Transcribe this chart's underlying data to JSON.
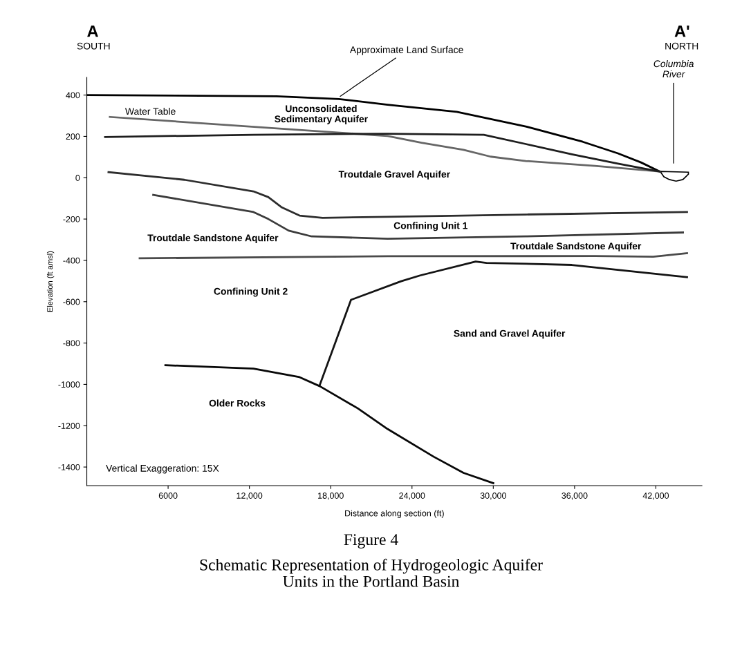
{
  "chart_data": {
    "type": "line",
    "title": "Figure 4",
    "subtitle": "Schematic Representation of Hydrogeologic Aquifer\nUnits in the Portland Basin",
    "xlabel": "Distance along section (ft)",
    "ylabel": "Elevation (ft amsl)",
    "xlim": [
      0,
      45400
    ],
    "ylim": [
      -1490,
      485
    ],
    "xticks": [
      6000,
      {
        "value": 12000,
        "label": "12,000"
      },
      {
        "value": 18000,
        "label": "18,000"
      },
      {
        "value": 24000,
        "label": "24,000"
      },
      {
        "value": 30000,
        "label": "30,000"
      },
      {
        "value": 36000,
        "label": "36,000"
      },
      {
        "value": 42000,
        "label": "42,000"
      }
    ],
    "yticks": [
      400,
      200,
      0,
      -200,
      -400,
      -600,
      -800,
      -1000,
      -1200,
      -1400
    ],
    "grid": false,
    "marker": "none",
    "line_style": "solid",
    "series": [
      {
        "color": "#000000",
        "x": [
          0,
          14000,
          18600,
          22200,
          27300,
          32400,
          36600,
          39200,
          40900,
          42300
        ],
        "values": [
          400,
          394,
          381,
          353,
          319,
          248,
          174,
          118,
          74,
          30
        ]
      },
      {
        "color": "#666666",
        "x": [
          1700,
          22200,
          24700,
          27800,
          29800,
          32400,
          37500,
          42300
        ],
        "values": [
          294,
          202,
          169,
          135,
          102,
          81,
          57,
          30
        ]
      },
      {
        "color": "#1e1e1e",
        "x": [
          1350,
          12300,
          22200,
          29300,
          32400,
          35800,
          39200,
          42300
        ],
        "values": [
          197,
          208,
          213,
          208,
          163,
          113,
          68,
          30
        ]
      },
      {
        "color": "#2d2d2d",
        "x": [
          1600,
          7200,
          12300,
          13400,
          14400,
          15700,
          17400,
          22200,
          32400,
          44300
        ],
        "values": [
          27,
          -10,
          -66,
          -94,
          -144,
          -183,
          -194,
          -189,
          -178,
          -166
        ]
      },
      {
        "color": "#3c3c3c",
        "x": [
          4900,
          12300,
          13400,
          14900,
          16600,
          22200,
          32400,
          44000
        ],
        "values": [
          -83,
          -166,
          -200,
          -256,
          -284,
          -295,
          -284,
          -265
        ]
      },
      {
        "color": "#4b4b4b",
        "x": [
          3900,
          22200,
          37500,
          41800,
          44300
        ],
        "values": [
          -390,
          -380,
          -379,
          -382,
          -365
        ]
      },
      {
        "color": "#141414",
        "x": [
          17200,
          19500,
          23200,
          24600,
          28700,
          29500,
          35800,
          44300
        ],
        "values": [
          -1002,
          -591,
          -501,
          -473,
          -406,
          -412,
          -422,
          -481
        ]
      },
      {
        "color": "#080808",
        "x": [
          5800,
          12300,
          15700,
          17200,
          20000,
          22200,
          25600,
          27800,
          30000
        ],
        "values": [
          -907,
          -924,
          -965,
          -1009,
          -1116,
          -1216,
          -1350,
          -1428,
          -1478
        ]
      }
    ],
    "annotations": [
      "A",
      "SOUTH",
      "A'",
      "NORTH",
      {
        "text": "Approximate Land Surface",
        "x": 18700,
        "y": 394
      },
      "Columbia\nRiver",
      "Water Table",
      "Unconsolidated\nSedimentary Aquifer",
      "Troutdale Gravel Aquifer",
      "Confining Unit 1",
      "Troutdale Sandstone Aquifer",
      "Troutdale Sandstone Aquifer",
      "Confining Unit 2",
      "Sand and Gravel Aquifer",
      "Older Rocks",
      "Vertical Exaggeration: 15X"
    ]
  }
}
